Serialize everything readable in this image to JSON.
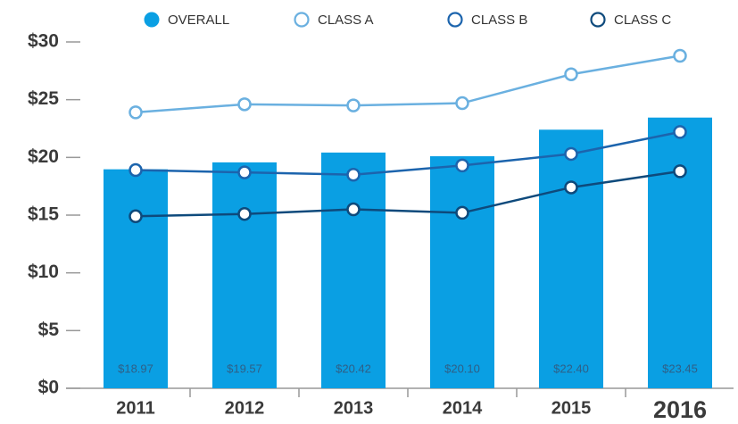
{
  "chart_data": {
    "type": "bar_line",
    "categories": [
      "2011",
      "2012",
      "2013",
      "2014",
      "2015",
      "2016"
    ],
    "series": [
      {
        "name": "OVERALL",
        "type": "bar",
        "color": "#0a9fe3",
        "values": [
          18.97,
          19.57,
          20.42,
          20.1,
          22.4,
          23.45
        ],
        "value_labels": [
          "$18.97",
          "$19.57",
          "$20.42",
          "$20.10",
          "$22.40",
          "$23.45"
        ]
      },
      {
        "name": "CLASS A",
        "type": "line",
        "color": "#6ab0e0",
        "values": [
          23.9,
          24.6,
          24.5,
          24.7,
          27.2,
          28.8
        ]
      },
      {
        "name": "CLASS B",
        "type": "line",
        "color": "#1c64ad",
        "values": [
          18.9,
          18.7,
          18.5,
          19.3,
          20.3,
          22.2
        ]
      },
      {
        "name": "CLASS C",
        "type": "line",
        "color": "#0e4a7c",
        "values": [
          14.9,
          15.1,
          15.5,
          15.2,
          17.4,
          18.8
        ]
      }
    ],
    "ylim": [
      0,
      30
    ],
    "yticks": [
      {
        "value": 0,
        "label": "$0"
      },
      {
        "value": 5,
        "label": "$5"
      },
      {
        "value": 10,
        "label": "$10"
      },
      {
        "value": 15,
        "label": "$15"
      },
      {
        "value": 20,
        "label": "$20"
      },
      {
        "value": 25,
        "label": "$25"
      },
      {
        "value": 30,
        "label": "$30"
      }
    ]
  }
}
